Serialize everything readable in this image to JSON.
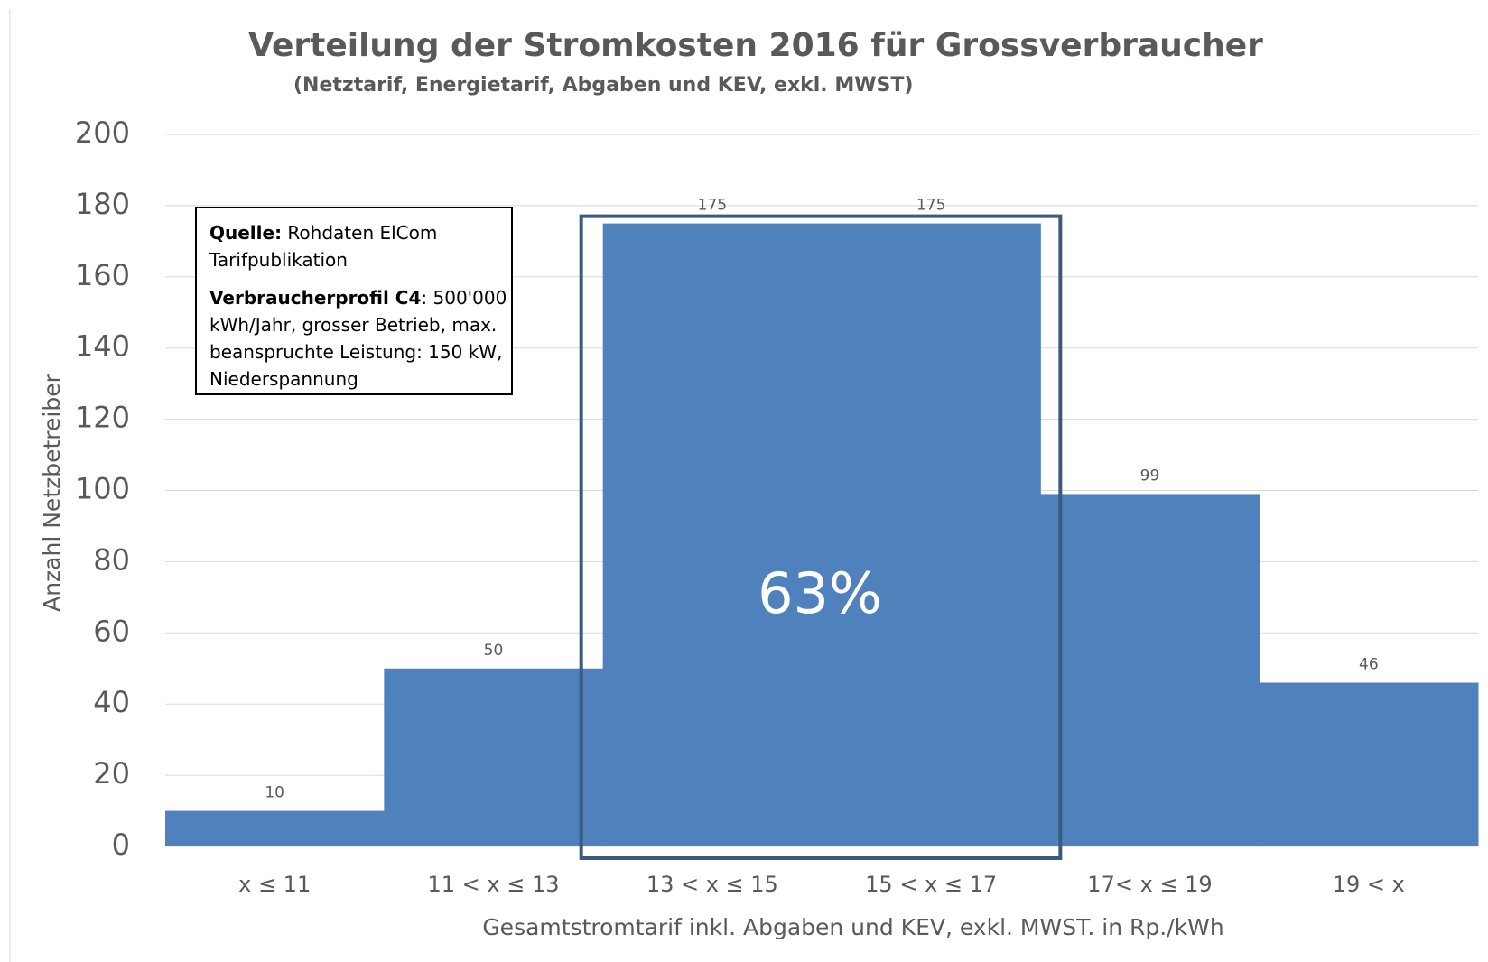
{
  "chart_data": {
    "type": "bar",
    "title": "Verteilung der Stromkosten 2016 für Grossverbraucher",
    "subtitle": "(Netztarif, Energietarif, Abgaben und KEV, exkl. MWST)",
    "x_label": "Gesamtstromtarif inkl. Abgaben und KEV, exkl. MWST. in Rp./kWh",
    "y_label": "Anzahl Netzbetreiber",
    "categories": [
      "x ≤ 11",
      "11 < x ≤ 13",
      "13 < x ≤ 15",
      "15 < x ≤ 17",
      "17< x ≤ 19",
      "19 < x"
    ],
    "values": [
      10,
      50,
      175,
      175,
      99,
      46
    ],
    "color": "#4f81bd",
    "ylim": [
      0,
      200
    ],
    "yticks": [
      0,
      20,
      40,
      60,
      80,
      100,
      120,
      140,
      160,
      180,
      200
    ],
    "grid": true,
    "highlight_label": "63%",
    "source_box": {
      "source_label": "Quelle:",
      "source_text": " Rohdaten ElCom Tarifpublikation",
      "profile_label": "Verbraucherprofil C4",
      "profile_text": ": 500'000 kWh/Jahr, grosser Betrieb, max. beanspruchte Leistung: 150 kW, Niederspannung"
    }
  }
}
